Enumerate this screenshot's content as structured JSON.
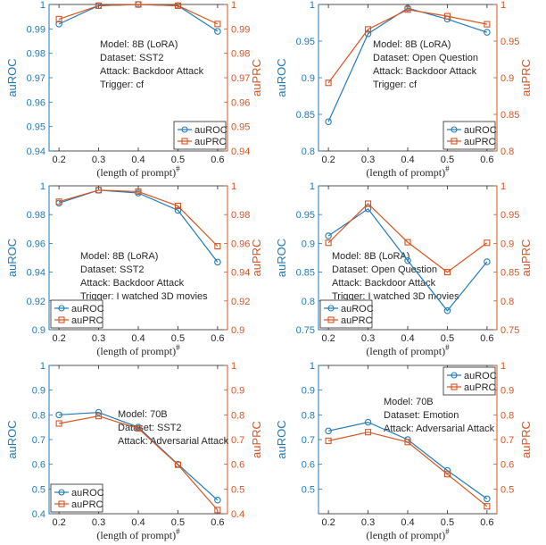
{
  "colors": {
    "auROC": "#1f7ab8",
    "auPRC": "#d9531e",
    "axis": "#262626"
  },
  "chart_data": [
    {
      "type": "line",
      "xlabel": "(length of prompt)#",
      "ylabel_left": "auROC",
      "ylabel_right": "auPRC",
      "x": [
        0.2,
        0.3,
        0.4,
        0.5,
        0.6
      ],
      "xticks": [
        "0.2",
        "0.3",
        "0.4",
        "0.5",
        "0.6"
      ],
      "ylim": [
        0.94,
        1.0
      ],
      "yticks": [
        "0.94",
        "0.95",
        "0.96",
        "0.97",
        "0.98",
        "0.99",
        "1"
      ],
      "series": [
        {
          "name": "auROC",
          "values": [
            0.992,
            0.9995,
            1.0,
            0.9995,
            0.989
          ]
        },
        {
          "name": "auPRC",
          "values": [
            0.994,
            0.9995,
            1.0,
            0.9995,
            0.992
          ]
        }
      ],
      "annotation": [
        "Model: 8B (LoRA)",
        "Dataset: SST2",
        "Attack: Backdoor Attack",
        "Trigger: cf"
      ],
      "legend": "bottom-right"
    },
    {
      "type": "line",
      "xlabel": "(length of prompt)#",
      "ylabel_left": "auROC",
      "ylabel_right": "auPRC",
      "x": [
        0.2,
        0.3,
        0.4,
        0.5,
        0.6
      ],
      "xticks": [
        "0.2",
        "0.3",
        "0.4",
        "0.5",
        "0.6"
      ],
      "ylim": [
        0.8,
        1.0
      ],
      "yticks": [
        "0.8",
        "0.85",
        "0.9",
        "0.95",
        "1"
      ],
      "series": [
        {
          "name": "auROC",
          "values": [
            0.84,
            0.96,
            0.995,
            0.98,
            0.962
          ]
        },
        {
          "name": "auPRC",
          "values": [
            0.893,
            0.966,
            0.993,
            0.984,
            0.973
          ]
        }
      ],
      "annotation": [
        "Model: 8B (LoRA)",
        "Dataset: Open Question",
        "Attack: Backdoor Attack",
        "Trigger: cf"
      ],
      "legend": "bottom-right"
    },
    {
      "type": "line",
      "xlabel": "(length of prompt)#",
      "ylabel_left": "auROC",
      "ylabel_right": "auPRC",
      "x": [
        0.2,
        0.3,
        0.4,
        0.5,
        0.6
      ],
      "xticks": [
        "0.2",
        "0.3",
        "0.4",
        "0.5",
        "0.6"
      ],
      "ylim": [
        0.9,
        1.0
      ],
      "yticks": [
        "0.9",
        "0.92",
        "0.94",
        "0.96",
        "0.98",
        "1"
      ],
      "series": [
        {
          "name": "auROC",
          "values": [
            0.988,
            0.997,
            0.995,
            0.983,
            0.947
          ]
        },
        {
          "name": "auPRC",
          "values": [
            0.989,
            0.997,
            0.996,
            0.986,
            0.958
          ]
        }
      ],
      "annotation": [
        "Model: 8B (LoRA)",
        "Dataset: SST2",
        "Attack: Backdoor Attack",
        "Trigger: I watched 3D movies"
      ],
      "legend": "bottom-left"
    },
    {
      "type": "line",
      "xlabel": "(length of prompt)#",
      "ylabel_left": "auROC",
      "ylabel_right": "auPRC",
      "x": [
        0.2,
        0.3,
        0.4,
        0.5,
        0.6
      ],
      "xticks": [
        "0.2",
        "0.3",
        "0.4",
        "0.5",
        "0.6"
      ],
      "ylim": [
        0.75,
        1.0
      ],
      "yticks": [
        "0.75",
        "0.8",
        "0.85",
        "0.9",
        "0.95",
        "1"
      ],
      "series": [
        {
          "name": "auROC",
          "values": [
            0.913,
            0.96,
            0.87,
            0.783,
            0.868
          ]
        },
        {
          "name": "auPRC",
          "values": [
            0.901,
            0.969,
            0.902,
            0.85,
            0.901
          ]
        }
      ],
      "annotation": [
        "Model: 8B (LoRA)",
        "Dataset: Open Question",
        "Attack: Backdoor Attack",
        "Trigger: I watched 3D movies"
      ],
      "legend": "bottom-left"
    },
    {
      "type": "line",
      "xlabel": "(length of prompt)#",
      "ylabel_left": "auROC",
      "ylabel_right": "auPRC",
      "x": [
        0.2,
        0.3,
        0.4,
        0.5,
        0.6
      ],
      "xticks": [
        "0.2",
        "0.3",
        "0.4",
        "0.5",
        "0.6"
      ],
      "ylim": [
        0.4,
        1.0
      ],
      "yticks": [
        "0.4",
        "0.5",
        "0.6",
        "0.7",
        "0.8",
        "0.9",
        "1"
      ],
      "series": [
        {
          "name": "auROC",
          "values": [
            0.8,
            0.81,
            0.75,
            0.6,
            0.455
          ]
        },
        {
          "name": "auPRC",
          "values": [
            0.765,
            0.795,
            0.745,
            0.598,
            0.415
          ]
        }
      ],
      "annotation": [
        "Model: 70B",
        "Dataset: SST2",
        "Attack: Adversarial Attack"
      ],
      "legend": "bottom-left"
    },
    {
      "type": "line",
      "xlabel": "(length of prompt)#",
      "ylabel_left": "auROC",
      "ylabel_right": "auPRC",
      "x": [
        0.2,
        0.3,
        0.4,
        0.5,
        0.6
      ],
      "xticks": [
        "0.2",
        "0.3",
        "0.4",
        "0.5",
        "0.6"
      ],
      "ylim": [
        0.4,
        1.0
      ],
      "yticks": [
        "0.5",
        "0.6",
        "0.7",
        "0.8",
        "0.9",
        "1"
      ],
      "series": [
        {
          "name": "auROC",
          "values": [
            0.735,
            0.77,
            0.7,
            0.575,
            0.46
          ]
        },
        {
          "name": "auPRC",
          "values": [
            0.695,
            0.73,
            0.69,
            0.56,
            0.43
          ]
        }
      ],
      "annotation": [
        "Model: 70B",
        "Dataset: Emotion",
        "Attack: Adversarial Attack"
      ],
      "legend": "top-right"
    }
  ]
}
